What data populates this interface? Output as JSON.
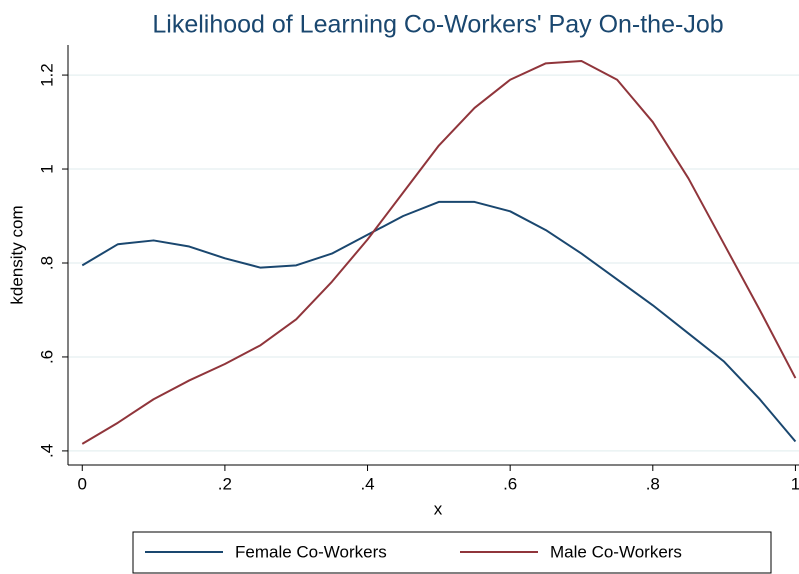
{
  "chart_data": {
    "type": "line",
    "title": "Likelihood of Learning Co-Workers' Pay On-the-Job",
    "x_label": "x",
    "y_label": "kdensity com",
    "x": [
      0,
      0.05,
      0.1,
      0.15,
      0.2,
      0.25,
      0.3,
      0.35,
      0.4,
      0.45,
      0.5,
      0.55,
      0.6,
      0.65,
      0.7,
      0.75,
      0.8,
      0.85,
      0.9,
      0.95,
      1
    ],
    "series": [
      {
        "name": "Female Co-Workers",
        "color": "#1a476f",
        "values": [
          0.795,
          0.84,
          0.848,
          0.835,
          0.81,
          0.79,
          0.795,
          0.82,
          0.86,
          0.9,
          0.93,
          0.93,
          0.91,
          0.87,
          0.82,
          0.765,
          0.71,
          0.65,
          0.59,
          0.51,
          0.42
        ]
      },
      {
        "name": "Male Co-Workers",
        "color": "#90353b",
        "values": [
          0.415,
          0.46,
          0.51,
          0.55,
          0.585,
          0.625,
          0.68,
          0.76,
          0.85,
          0.95,
          1.05,
          1.13,
          1.19,
          1.225,
          1.23,
          1.19,
          1.1,
          0.98,
          0.84,
          0.7,
          0.555
        ]
      }
    ],
    "xlim": [
      -0.02,
      1.005
    ],
    "ylim": [
      0.37,
      1.264
    ],
    "xticks": [
      0,
      {
        "value": 0.2,
        "label": ".2"
      },
      {
        "value": 0.4,
        "label": ".4"
      },
      {
        "value": 0.6,
        "label": ".6"
      },
      {
        "value": 0.8,
        "label": ".8"
      },
      1
    ],
    "yticks": [
      {
        "value": 0.4,
        "label": ".4"
      },
      {
        "value": 0.6,
        "label": ".6"
      },
      {
        "value": 0.8,
        "label": ".8"
      },
      1,
      1.2
    ],
    "grid": true,
    "legend": "bottom"
  }
}
